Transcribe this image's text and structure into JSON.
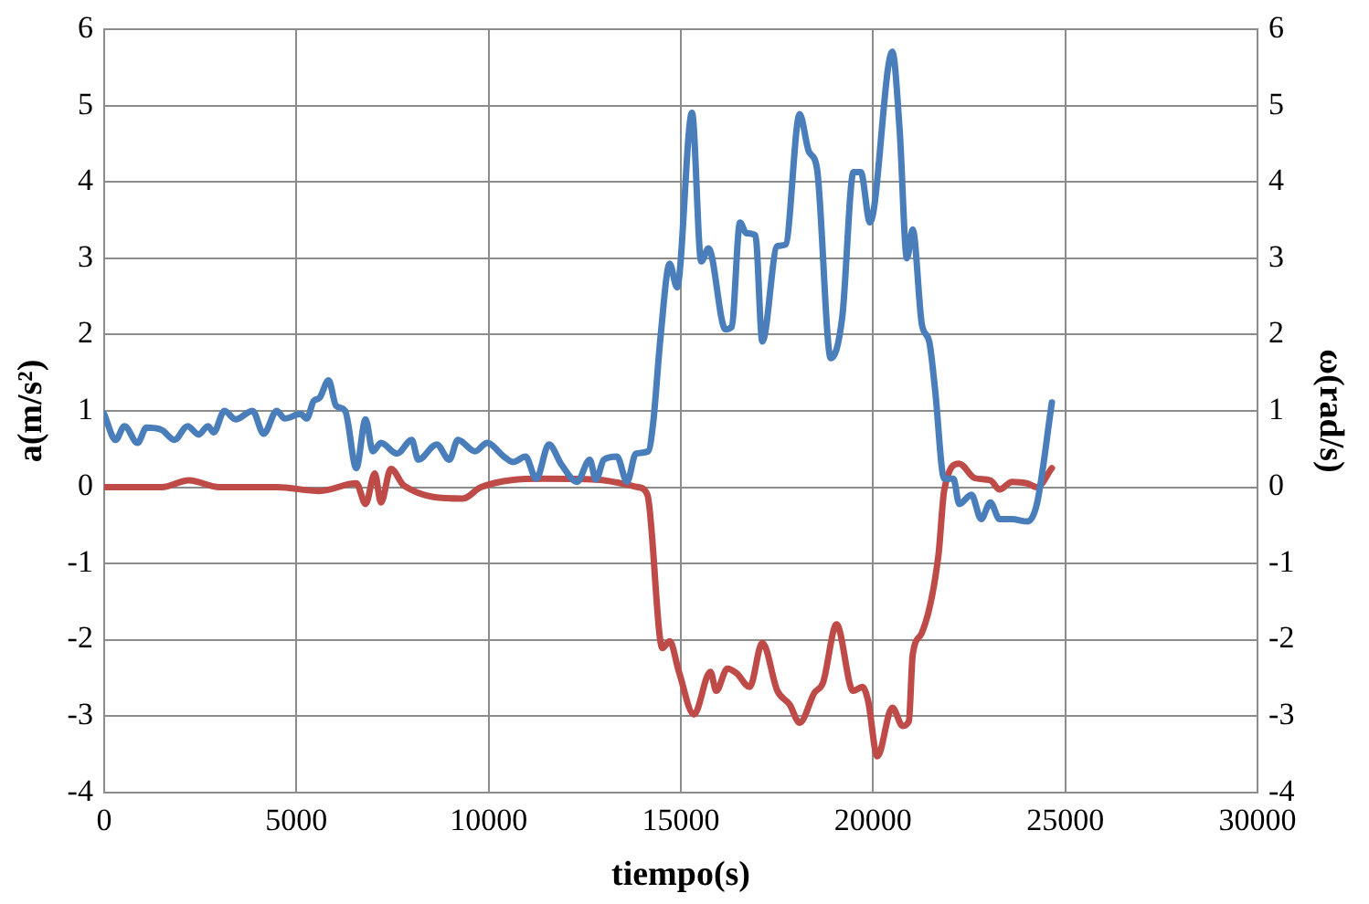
{
  "chart_data": {
    "type": "line",
    "xlabel": "tiempo(s)",
    "ylabel": "a(m/s²)",
    "y2label": "ω(rad/s)",
    "xlim": [
      0,
      30000
    ],
    "xticks": [
      0,
      5000,
      10000,
      15000,
      20000,
      25000,
      30000
    ],
    "ylim": [
      -4,
      6
    ],
    "yticks": [
      -4,
      -3,
      -2,
      -1,
      0,
      1,
      2,
      3,
      4,
      5,
      6
    ],
    "y2lim": [
      -4,
      6
    ],
    "y2ticks": [
      -4,
      -3,
      -2,
      -1,
      0,
      1,
      2,
      3,
      4,
      5,
      6
    ],
    "grid": true,
    "legend": false,
    "marker": "none",
    "line_style": "solid",
    "series": [
      {
        "color": "#4a7ebb",
        "x": [
          0,
          300,
          530,
          870,
          1100,
          1500,
          1830,
          2170,
          2460,
          2700,
          2850,
          3130,
          3420,
          3860,
          4150,
          4490,
          4700,
          5110,
          5270,
          5450,
          5600,
          5840,
          6030,
          6270,
          6560,
          6800,
          6990,
          7200,
          7620,
          8000,
          8170,
          8650,
          8980,
          9200,
          9650,
          9960,
          10400,
          10640,
          10960,
          11240,
          11570,
          11890,
          12300,
          12630,
          12790,
          13000,
          13340,
          13600,
          13830,
          14150,
          14280,
          14470,
          14710,
          14900,
          15290,
          15530,
          15720,
          16160,
          16320,
          16540,
          16700,
          16940,
          17120,
          17510,
          17720,
          18090,
          18330,
          18540,
          18900,
          19200,
          19490,
          19680,
          19920,
          20500,
          20690,
          20880,
          21030,
          21270,
          21460,
          21610,
          21850,
          22090,
          22240,
          22560,
          22810,
          23050,
          23290,
          23610,
          24010,
          24260,
          24650
        ],
        "values": [
          0.96,
          0.62,
          0.8,
          0.58,
          0.78,
          0.75,
          0.62,
          0.8,
          0.69,
          0.8,
          0.72,
          1.0,
          0.89,
          1.0,
          0.7,
          1.0,
          0.9,
          0.96,
          0.9,
          1.13,
          1.17,
          1.4,
          1.07,
          1.0,
          0.25,
          0.89,
          0.47,
          0.58,
          0.44,
          0.62,
          0.36,
          0.56,
          0.36,
          0.62,
          0.47,
          0.58,
          0.4,
          0.33,
          0.4,
          0.11,
          0.56,
          0.3,
          0.07,
          0.36,
          0.1,
          0.36,
          0.4,
          0.07,
          0.44,
          0.47,
          0.84,
          1.96,
          2.93,
          2.62,
          4.91,
          2.96,
          3.13,
          2.07,
          2.1,
          3.47,
          3.33,
          3.3,
          1.91,
          3.16,
          3.18,
          4.89,
          4.4,
          4.18,
          1.69,
          2.24,
          4.13,
          4.13,
          3.47,
          5.71,
          4.69,
          3.0,
          3.38,
          2.13,
          1.91,
          1.29,
          0.11,
          0.11,
          -0.22,
          -0.1,
          -0.42,
          -0.2,
          -0.42,
          -0.42,
          -0.45,
          -0.22,
          1.11
        ]
      },
      {
        "color": "#be4b48",
        "axis": "y2",
        "x": [
          0,
          1500,
          2200,
          3000,
          4500,
          5600,
          6560,
          6800,
          7040,
          7200,
          7460,
          7800,
          9330,
          9800,
          11400,
          12800,
          13890,
          14130,
          14520,
          14710,
          14950,
          15340,
          15770,
          15920,
          16210,
          16450,
          16790,
          17120,
          17510,
          17830,
          18090,
          18470,
          18700,
          19050,
          19480,
          19720,
          19870,
          20110,
          20500,
          20770,
          20930,
          21030,
          21270,
          21700,
          21850,
          22240,
          22640,
          23050,
          23290,
          23610,
          24010,
          24260,
          24650
        ],
        "values": [
          0,
          0,
          0.09,
          0,
          0,
          -0.05,
          0.05,
          -0.22,
          0.18,
          -0.2,
          0.24,
          0.02,
          -0.15,
          0,
          0.11,
          0.1,
          0,
          -0.1,
          -2.11,
          -2.02,
          -2.42,
          -2.98,
          -2.42,
          -2.67,
          -2.38,
          -2.44,
          -2.62,
          -2.04,
          -2.67,
          -2.85,
          -3.09,
          -2.7,
          -2.56,
          -1.8,
          -2.67,
          -2.62,
          -2.8,
          -3.53,
          -2.89,
          -3.13,
          -3.07,
          -2.2,
          -1.91,
          -0.89,
          -0.04,
          0.31,
          0.12,
          0.09,
          -0.03,
          0.07,
          0.05,
          0,
          0.25
        ]
      }
    ]
  }
}
